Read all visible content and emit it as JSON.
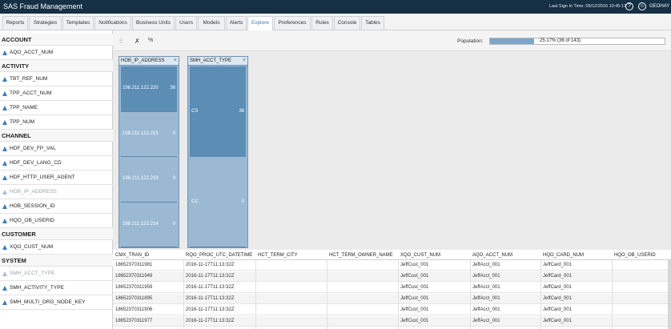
{
  "header": {
    "app_title": "SAS Fraud Management",
    "last_signin": "Last Sign In Time: 05/12/2016 10:45:17",
    "help_icon": "question-icon",
    "user_icon": "user-icon",
    "username": "GEOHAY"
  },
  "tabs": [
    "Reports",
    "Strategies",
    "Templates",
    "Notifications",
    "Business Units",
    "Users",
    "Models",
    "Alerts",
    "Explore",
    "Preferences",
    "Rules",
    "Console",
    "Tables"
  ],
  "active_tab": "Explore",
  "sidebar": {
    "sections": [
      {
        "title": "ACCOUNT",
        "items": [
          {
            "label": "AQO_ACCT_NUM",
            "disabled": false
          }
        ]
      },
      {
        "title": "ACTIVITY",
        "items": [
          {
            "label": "TBT_REF_NUM",
            "disabled": false
          },
          {
            "label": "TPP_ACCT_NUM",
            "disabled": false
          },
          {
            "label": "TPP_NAME",
            "disabled": false
          },
          {
            "label": "TPP_NUM",
            "disabled": false
          }
        ]
      },
      {
        "title": "CHANNEL",
        "items": [
          {
            "label": "HDF_DEV_FP_VAL",
            "disabled": false
          },
          {
            "label": "HDF_DEV_LANG_CD",
            "disabled": false
          },
          {
            "label": "HDF_HTTP_USER_AGENT",
            "disabled": false
          },
          {
            "label": "HOB_IP_ADDRESS",
            "disabled": true
          },
          {
            "label": "HOB_SESSION_ID",
            "disabled": false
          },
          {
            "label": "HQO_OB_USERID",
            "disabled": false
          }
        ]
      },
      {
        "title": "CUSTOMER",
        "items": [
          {
            "label": "XQO_CUST_NUM",
            "disabled": false
          }
        ]
      },
      {
        "title": "SYSTEM",
        "items": [
          {
            "label": "SMH_ACCT_TYPE",
            "disabled": true
          },
          {
            "label": "SMH_ACTIVITY_TYPE",
            "disabled": false
          },
          {
            "label": "SMH_MULTI_ORG_NODE_KEY",
            "disabled": false
          }
        ]
      }
    ]
  },
  "toolbar": {
    "filter_icon": "filter-columns-icon",
    "clear_filter_icon": "clear-filter-icon",
    "percent_label": "%",
    "population_label": "Population:",
    "population_text": "25.17% (36 of 143)",
    "population_fraction": 0.2517
  },
  "cards": [
    {
      "title": "HOB_IP_ADDRESS",
      "close": "×",
      "bins": [
        {
          "label": "198.211.122.220",
          "count": "36",
          "selected": true
        },
        {
          "label": "198.211.122.215",
          "count": "0",
          "selected": false
        },
        {
          "label": "198.211.122.233",
          "count": "0",
          "selected": false
        },
        {
          "label": "198.211.122.214",
          "count": "0",
          "selected": false
        }
      ]
    },
    {
      "title": "SMH_ACCT_TYPE",
      "close": "×",
      "bins": [
        {
          "label": "CS",
          "count": "36",
          "selected": true
        },
        {
          "label": "CC",
          "count": "0",
          "selected": false
        }
      ]
    }
  ],
  "table": {
    "columns": [
      "CMX_TRAN_ID",
      "RQO_PROC_UTC_DATETIME",
      "HCT_TERM_CITY",
      "HCT_TERM_OWNER_NAME",
      "XQO_CUST_NUM",
      "AQO_ACCT_NUM",
      "HQO_CARD_NUM",
      "HQO_OB_USERID"
    ],
    "rows": [
      [
        "18652370311981",
        "2016-11-17T11:13:32Z",
        "",
        "",
        "JeffCust_001",
        "JeffAcct_001",
        "JeffCard_001",
        ""
      ],
      [
        "18652370311949",
        "2016-11-17T11:13:32Z",
        "",
        "",
        "JeffCust_001",
        "JeffAcct_001",
        "JeffCard_001",
        ""
      ],
      [
        "18652370311959",
        "2016-11-17T11:13:32Z",
        "",
        "",
        "JeffCust_001",
        "JeffAcct_001",
        "JeffCard_001",
        ""
      ],
      [
        "18652370311895",
        "2016-11-17T11:13:32Z",
        "",
        "",
        "JeffCust_001",
        "JeffAcct_001",
        "JeffCard_001",
        ""
      ],
      [
        "18652370311906",
        "2016-11-17T11:13:32Z",
        "",
        "",
        "JeffCust_001",
        "JeffAcct_001",
        "JeffCard_001",
        ""
      ],
      [
        "18652370311977",
        "2016-11-17T11:13:32Z",
        "",
        "",
        "JeffCust_001",
        "JeffAcct_001",
        "JeffCard_001",
        ""
      ]
    ]
  },
  "colors": {
    "header_bg": "#152f45",
    "accent": "#3a79b3",
    "bin_selected": "#5b8db5",
    "bin_unselected": "#9bb9d3",
    "population_fill": "#7ea6c6"
  }
}
